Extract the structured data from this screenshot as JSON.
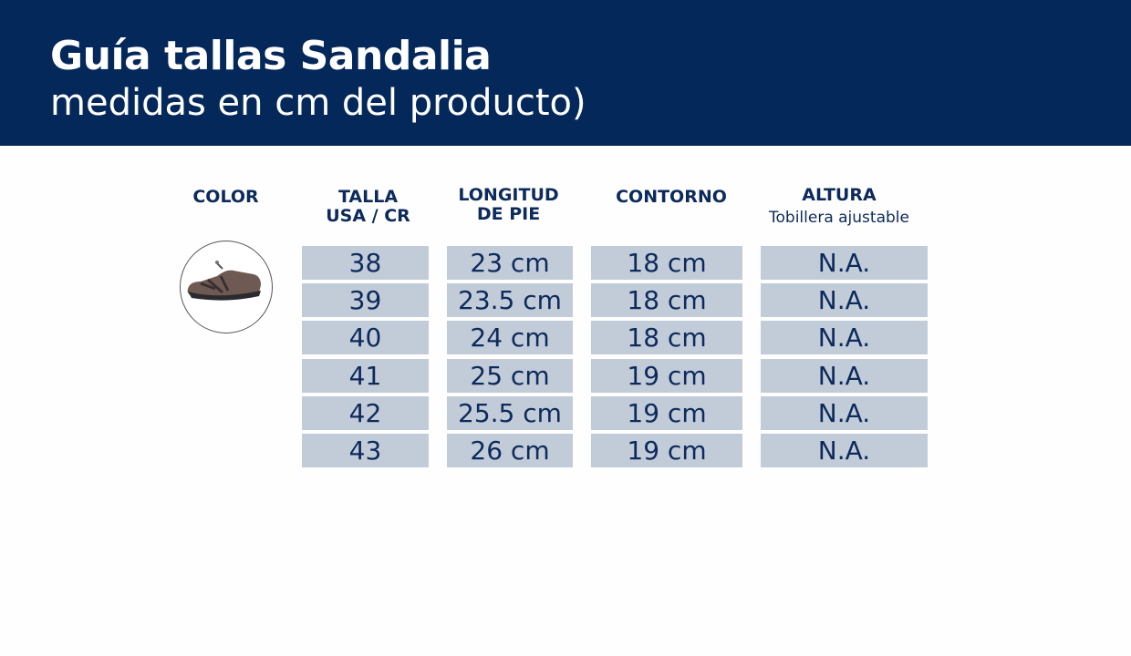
{
  "header": {
    "title": "Guía tallas Sandalia",
    "subtitle": "medidas en cm del producto)"
  },
  "table": {
    "columns": [
      {
        "label": "COLOR",
        "sub": ""
      },
      {
        "label": "TALLA\nUSA / CR",
        "sub": ""
      },
      {
        "label": "LONGITUD\nDE PIE",
        "sub": ""
      },
      {
        "label": "CONTORNO",
        "sub": ""
      },
      {
        "label": "ALTURA",
        "sub": "Tobillera ajustable"
      }
    ],
    "rows": [
      [
        "38",
        "23 cm",
        "18 cm",
        "N.A."
      ],
      [
        "39",
        "23.5 cm",
        "18 cm",
        "N.A."
      ],
      [
        "40",
        "24 cm",
        "18 cm",
        "N.A."
      ],
      [
        "41",
        "25 cm",
        "19 cm",
        "N.A."
      ],
      [
        "42",
        "25.5 cm",
        "19 cm",
        "N.A."
      ],
      [
        "43",
        "26 cm",
        "19 cm",
        "N.A."
      ]
    ]
  },
  "product_image": "brown-sandal",
  "colors": {
    "banner": "#04285a",
    "cell": "#c2ccd9",
    "text": "#0d2a5c"
  }
}
